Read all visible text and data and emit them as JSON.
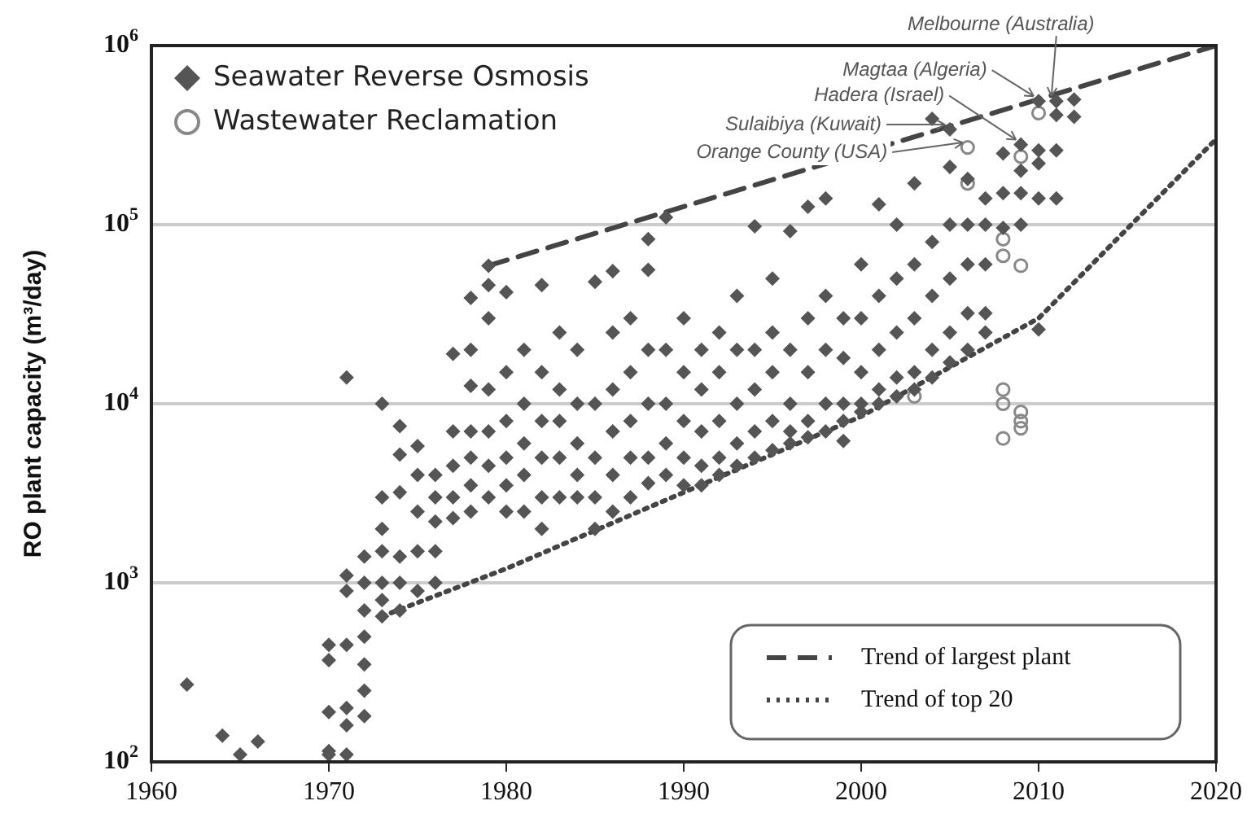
{
  "chart_data": {
    "type": "scatter",
    "ylabel": "RO plant capacity (m³/day)",
    "xlim": [
      1960,
      2020
    ],
    "xticks": [
      1960,
      1970,
      1980,
      1990,
      2000,
      2010,
      2020
    ],
    "ylim": [
      100,
      1000000
    ],
    "yticks": [
      {
        "value": 100,
        "label": "10$^{2}$"
      },
      {
        "value": 1000,
        "label": "10$^{3}$"
      },
      {
        "value": 10000,
        "label": "10$^{4}$"
      },
      {
        "value": 100000,
        "label": "10$^{5}$"
      },
      {
        "value": 1000000,
        "label": "10$^{6}$"
      }
    ],
    "log": "y",
    "grid": "y",
    "legend": "top left",
    "series": [
      {
        "name": "Seawater Reverse Osmosis",
        "color": "#555555",
        "marker": "diamond",
        "x": [
          1962,
          1964,
          1965,
          1966,
          1970,
          1970,
          1970,
          1970,
          1970,
          1971,
          1971,
          1971,
          1971,
          1971,
          1971,
          1971,
          1972,
          1972,
          1972,
          1972,
          1972,
          1972,
          1972,
          1973,
          1973,
          1973,
          1973,
          1973,
          1973,
          1973,
          1974,
          1974,
          1974,
          1974,
          1974,
          1974,
          1975,
          1975,
          1975,
          1975,
          1975,
          1976,
          1976,
          1976,
          1976,
          1976,
          1977,
          1977,
          1977,
          1977,
          1977,
          1978,
          1978,
          1978,
          1978,
          1978,
          1978,
          1978,
          1979,
          1979,
          1979,
          1979,
          1979,
          1979,
          1979,
          1980,
          1980,
          1980,
          1980,
          1980,
          1980,
          1981,
          1981,
          1981,
          1981,
          1981,
          1982,
          1982,
          1982,
          1982,
          1982,
          1982,
          1983,
          1983,
          1983,
          1983,
          1983,
          1984,
          1984,
          1984,
          1984,
          1984,
          1985,
          1985,
          1985,
          1985,
          1985,
          1986,
          1986,
          1986,
          1986,
          1986,
          1986,
          1987,
          1987,
          1987,
          1987,
          1987,
          1988,
          1988,
          1988,
          1988,
          1988,
          1988,
          1989,
          1989,
          1989,
          1989,
          1989,
          1990,
          1990,
          1990,
          1990,
          1990,
          1991,
          1991,
          1991,
          1991,
          1991,
          1992,
          1992,
          1992,
          1992,
          1992,
          1993,
          1993,
          1993,
          1993,
          1993,
          1994,
          1994,
          1994,
          1994,
          1994,
          1995,
          1995,
          1995,
          1995,
          1995,
          1996,
          1996,
          1996,
          1996,
          1996,
          1997,
          1997,
          1997,
          1997,
          1997,
          1998,
          1998,
          1998,
          1998,
          1998,
          1999,
          1999,
          1999,
          1999,
          1999,
          2000,
          2000,
          2000,
          2000,
          2000,
          2001,
          2001,
          2001,
          2001,
          2001,
          2002,
          2002,
          2002,
          2002,
          2002,
          2003,
          2003,
          2003,
          2003,
          2003,
          2004,
          2004,
          2004,
          2004,
          2004,
          2005,
          2005,
          2005,
          2005,
          2005,
          2005,
          2006,
          2006,
          2006,
          2006,
          2006,
          2007,
          2007,
          2007,
          2007,
          2007,
          2008,
          2008,
          2008,
          2009,
          2009,
          2009,
          2009,
          2010,
          2010,
          2010,
          2010,
          2010,
          2011,
          2011,
          2011,
          2011,
          2012,
          2012
        ],
        "values": [
          270,
          140,
          110,
          130,
          110,
          115,
          190,
          370,
          450,
          110,
          160,
          200,
          450,
          900,
          1100,
          14000,
          180,
          250,
          350,
          500,
          700,
          1000,
          1400,
          650,
          800,
          1000,
          1500,
          2000,
          3000,
          10000,
          700,
          1000,
          1400,
          3200,
          5200,
          7500,
          900,
          1500,
          2500,
          4000,
          5800,
          1000,
          1500,
          2200,
          3000,
          4000,
          2300,
          3000,
          4500,
          7000,
          19000,
          2500,
          3500,
          5000,
          7000,
          12600,
          20000,
          39000,
          3000,
          4500,
          7000,
          12000,
          30000,
          46000,
          59000,
          2500,
          3500,
          5000,
          8000,
          15000,
          42000,
          2500,
          4000,
          6000,
          10000,
          20000,
          2000,
          3000,
          5000,
          8000,
          15000,
          46000,
          3000,
          5000,
          8000,
          12000,
          25000,
          3000,
          4000,
          6000,
          10000,
          20000,
          2000,
          3000,
          5000,
          10000,
          48000,
          2500,
          4000,
          7000,
          12000,
          25000,
          55000,
          3000,
          5000,
          8000,
          15000,
          30000,
          3600,
          5000,
          10000,
          20000,
          56000,
          83000,
          4000,
          6000,
          10000,
          20000,
          110000,
          3500,
          5000,
          8000,
          15000,
          30000,
          3500,
          4500,
          7000,
          12000,
          20000,
          4000,
          5000,
          8000,
          15000,
          25000,
          4500,
          6000,
          10000,
          20000,
          40000,
          5000,
          7000,
          12000,
          20000,
          98000,
          5500,
          8000,
          15000,
          25000,
          50000,
          6000,
          7000,
          10000,
          20000,
          92000,
          6500,
          8000,
          15000,
          30000,
          126000,
          7000,
          10000,
          20000,
          40000,
          140000,
          6200,
          8000,
          10000,
          18000,
          30000,
          9000,
          10000,
          15000,
          30000,
          60000,
          10000,
          12000,
          20000,
          40000,
          130000,
          11000,
          14000,
          25000,
          50000,
          100000,
          12000,
          15000,
          30000,
          60000,
          170000,
          14000,
          20000,
          40000,
          80000,
          390000,
          17000,
          25000,
          50000,
          100000,
          210000,
          340000,
          20000,
          32000,
          60000,
          100000,
          180000,
          25000,
          32000,
          60000,
          100000,
          140000,
          96000,
          150000,
          250000,
          100000,
          150000,
          200000,
          280000,
          26000,
          140000,
          220000,
          260000,
          490000,
          140000,
          260000,
          410000,
          490000,
          400000,
          500000
        ]
      },
      {
        "name": "Wastewater Reclamation",
        "color": "#888888",
        "marker": "circle",
        "x": [
          2003,
          2006,
          2006,
          2008,
          2008,
          2008,
          2008,
          2008,
          2009,
          2009,
          2009,
          2009,
          2009,
          2010
        ],
        "values": [
          11000,
          270000,
          170000,
          83000,
          67000,
          12000,
          10000,
          6400,
          59000,
          240000,
          9000,
          8000,
          7300,
          420000
        ]
      },
      {
        "name": "Trend of largest plant",
        "type": "line",
        "color": "#444444",
        "line_style": "dashed",
        "marker": "none",
        "x": [
          1979,
          2020
        ],
        "values": [
          59000,
          1000000
        ]
      },
      {
        "name": "Trend of top 20",
        "type": "line",
        "color": "#444444",
        "line_style": "dotted",
        "marker": "none",
        "x": [
          1973,
          1980,
          1990,
          2000,
          2005,
          2010,
          2015,
          2020
        ],
        "values": [
          650,
          1200,
          3200,
          8500,
          16000,
          30000,
          95000,
          300000
        ]
      }
    ],
    "annotations": [
      {
        "text": "Melbourne (Australia)",
        "x": 2011,
        "y": 490000
      },
      {
        "text": "Magtaa (Algeria)",
        "x": 2010,
        "y": 490000
      },
      {
        "text": "Hadera (Israel)",
        "x": 2009,
        "y": 280000
      },
      {
        "text": "Sulaibiya (Kuwait)",
        "x": 2005,
        "y": 340000
      },
      {
        "text": "Orange County (USA)",
        "x": 2006,
        "y": 270000
      }
    ]
  }
}
